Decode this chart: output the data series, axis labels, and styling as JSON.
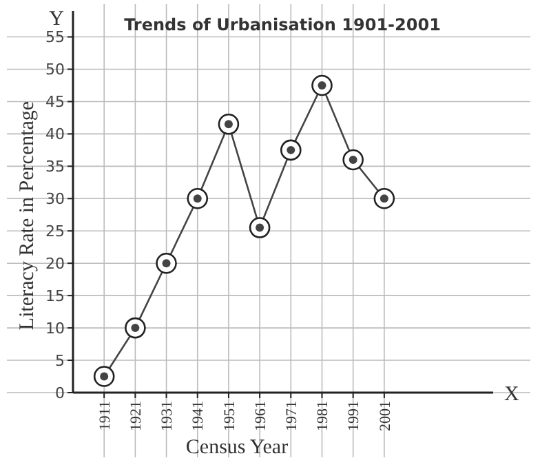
{
  "chart_data": {
    "type": "line",
    "title": "Trends of Urbanisation 1901-2001",
    "xlabel": "Census Year",
    "ylabel": "Literacy Rate in Percentage",
    "annotations": [
      "Y",
      "X"
    ],
    "categories": [
      "1911",
      "1921",
      "1931",
      "1941",
      "1951",
      "1961",
      "1971",
      "1981",
      "1991",
      "2001"
    ],
    "series": [
      {
        "color": "#444444",
        "values": [
          2.5,
          10,
          20,
          30,
          41.5,
          25.5,
          37.5,
          47.5,
          36,
          30
        ]
      }
    ],
    "ylim": [
      0,
      59
    ],
    "yticks": [
      0,
      5,
      10,
      15,
      20,
      25,
      30,
      35,
      40,
      45,
      50,
      55
    ],
    "grid": true,
    "marker": "circle",
    "line_style": "solid"
  }
}
